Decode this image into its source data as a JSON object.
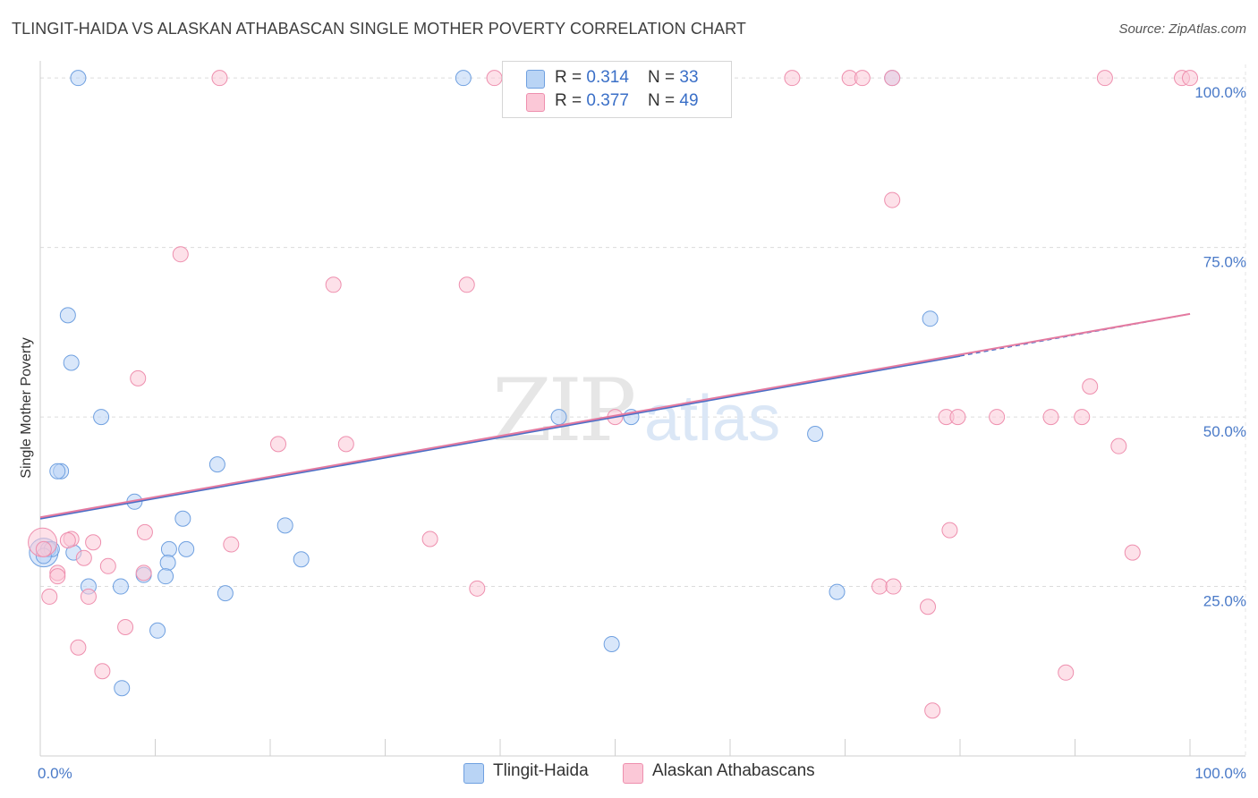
{
  "title": "TLINGIT-HAIDA VS ALASKAN ATHABASCAN SINGLE MOTHER POVERTY CORRELATION CHART",
  "source": "Source: ZipAtlas.com",
  "watermark": {
    "zip": "ZIP",
    "atlas": "atlas"
  },
  "legend": {
    "r_label": "R = ",
    "n_label": "N = ",
    "series": [
      {
        "name": "Tlingit-Haida",
        "r": "0.314",
        "n": "33",
        "fill": "#b9d4f5",
        "stroke": "#6fa0e0"
      },
      {
        "name": "Alaskan Athabascans",
        "r": "0.377",
        "n": "49",
        "fill": "#fbc8d7",
        "stroke": "#ee8fae"
      }
    ]
  },
  "chart_data": {
    "type": "scatter",
    "title": "TLINGIT-HAIDA VS ALASKAN ATHABASCAN SINGLE MOTHER POVERTY CORRELATION CHART",
    "xlabel": "",
    "ylabel": "Single Mother Poverty",
    "xlim": [
      0,
      100
    ],
    "ylim": [
      0,
      102
    ],
    "x_tick_labels": [
      "0.0%",
      "100.0%"
    ],
    "y_ticks": [
      {
        "value": 25,
        "label": "25.0%"
      },
      {
        "value": 50,
        "label": "50.0%"
      },
      {
        "value": 75,
        "label": "75.0%"
      },
      {
        "value": 100,
        "label": "100.0%"
      }
    ],
    "series": [
      {
        "name": "Tlingit-Haida",
        "color": "#6fa0e0",
        "fill": "#b9d4f5",
        "points": [
          [
            3.3,
            100
          ],
          [
            36.8,
            100
          ],
          [
            74.1,
            100
          ],
          [
            2.4,
            65
          ],
          [
            2.7,
            58
          ],
          [
            5.3,
            50
          ],
          [
            1.8,
            42
          ],
          [
            1.5,
            42
          ],
          [
            15.4,
            43
          ],
          [
            8.2,
            37.5
          ],
          [
            12.4,
            35
          ],
          [
            21.3,
            34
          ],
          [
            11.2,
            30.5
          ],
          [
            12.7,
            30.5
          ],
          [
            0.7,
            30.5
          ],
          [
            1.0,
            30.5
          ],
          [
            0.3,
            29.5
          ],
          [
            2.9,
            30
          ],
          [
            11.1,
            28.5
          ],
          [
            22.7,
            29
          ],
          [
            9.0,
            26.7
          ],
          [
            10.9,
            26.5
          ],
          [
            4.2,
            25
          ],
          [
            7.0,
            25
          ],
          [
            16.1,
            24
          ],
          [
            10.2,
            18.5
          ],
          [
            7.1,
            10
          ],
          [
            45.1,
            50
          ],
          [
            51.4,
            50
          ],
          [
            49.7,
            16.5
          ],
          [
            67.4,
            47.5
          ],
          [
            69.3,
            24.2
          ],
          [
            77.4,
            64.5
          ]
        ],
        "big_point": [
          0.3,
          30
        ]
      },
      {
        "name": "Alaskan Athabascans",
        "color": "#ee8fae",
        "fill": "#fbc8d7",
        "points": [
          [
            15.6,
            100
          ],
          [
            39.5,
            100
          ],
          [
            65.4,
            100
          ],
          [
            70.4,
            100
          ],
          [
            71.5,
            100
          ],
          [
            74.1,
            100
          ],
          [
            92.6,
            100
          ],
          [
            99.3,
            100
          ],
          [
            100,
            100
          ],
          [
            74.1,
            82
          ],
          [
            12.2,
            74
          ],
          [
            25.5,
            69.5
          ],
          [
            37.1,
            69.5
          ],
          [
            8.5,
            55.7
          ],
          [
            20.7,
            46
          ],
          [
            26.6,
            46
          ],
          [
            50.0,
            50
          ],
          [
            78.8,
            50
          ],
          [
            79.8,
            50
          ],
          [
            83.2,
            50
          ],
          [
            87.9,
            50
          ],
          [
            90.6,
            50
          ],
          [
            91.3,
            54.5
          ],
          [
            93.8,
            45.7
          ],
          [
            33.9,
            32
          ],
          [
            9.1,
            33
          ],
          [
            4.6,
            31.5
          ],
          [
            2.7,
            32
          ],
          [
            2.4,
            31.8
          ],
          [
            16.6,
            31.2
          ],
          [
            0.3,
            30.5
          ],
          [
            3.8,
            29.2
          ],
          [
            5.9,
            28
          ],
          [
            9.0,
            27
          ],
          [
            1.5,
            27
          ],
          [
            1.5,
            26.5
          ],
          [
            4.2,
            23.5
          ],
          [
            0.8,
            23.5
          ],
          [
            38.0,
            24.7
          ],
          [
            73.0,
            25
          ],
          [
            74.2,
            25
          ],
          [
            79.1,
            33.3
          ],
          [
            95.0,
            30
          ],
          [
            7.4,
            19
          ],
          [
            3.3,
            16
          ],
          [
            5.4,
            12.5
          ],
          [
            77.2,
            22
          ],
          [
            89.2,
            12.3
          ],
          [
            77.6,
            6.7
          ]
        ],
        "big_point": [
          0.2,
          31.5
        ]
      }
    ],
    "trend_lines": [
      {
        "series": "Tlingit-Haida",
        "color": "#4a6fc7",
        "x1": 0,
        "y1": 35.0,
        "x2": 80,
        "y2": 59.0,
        "dashed_to": 100,
        "y_end": 65.2
      },
      {
        "series": "Alaskan Athabascans",
        "color": "#e47aa0",
        "x1": 0,
        "y1": 35.2,
        "x2": 100,
        "y2": 65.2
      }
    ]
  }
}
